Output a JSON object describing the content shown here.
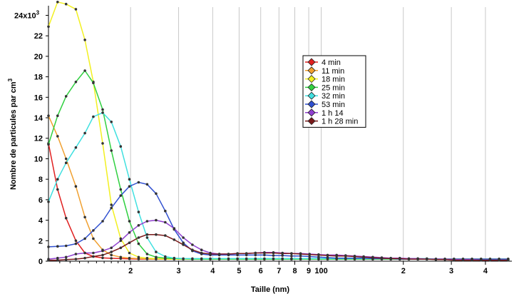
{
  "chart_data": {
    "type": "line",
    "xlabel": "Taille (nm)",
    "ylabel_text": "Nombre de particules par cm",
    "ylabel_sup": "3",
    "x_scale": "log",
    "xlim": [
      10,
      500
    ],
    "ylim": [
      0,
      24.8
    ],
    "y_exponent_label": "x10",
    "y_exponent_sup": "3",
    "y_ticks": [
      0,
      2,
      4,
      6,
      8,
      10,
      12,
      14,
      16,
      18,
      20,
      22,
      24
    ],
    "y_tick_labels": [
      "0",
      "2",
      "4",
      "6",
      "8",
      "10",
      "12",
      "14",
      "16",
      "18",
      "20",
      "22",
      "24"
    ],
    "x_gridlines": [
      20,
      30,
      40,
      50,
      60,
      70,
      80,
      90,
      100,
      200,
      300,
      400
    ],
    "x_tick_labels": [
      {
        "x": 20,
        "label": "2"
      },
      {
        "x": 30,
        "label": "3"
      },
      {
        "x": 40,
        "label": "4"
      },
      {
        "x": 50,
        "label": "5"
      },
      {
        "x": 60,
        "label": "6"
      },
      {
        "x": 70,
        "label": "7"
      },
      {
        "x": 80,
        "label": "8"
      },
      {
        "x": 90,
        "label": "9"
      },
      {
        "x": 100,
        "label": "100"
      },
      {
        "x": 200,
        "label": "2"
      },
      {
        "x": 300,
        "label": "3"
      },
      {
        "x": 400,
        "label": "4"
      }
    ],
    "grid": "vertical",
    "legend_position": "top-center",
    "x": [
      10.0,
      10.8,
      11.6,
      12.6,
      13.6,
      14.6,
      15.8,
      17.0,
      18.4,
      19.8,
      21.4,
      23.0,
      24.8,
      26.8,
      28.9,
      31.2,
      33.7,
      36.4,
      39.2,
      42.3,
      45.7,
      49.3,
      53.2,
      57.4,
      61.9,
      66.8,
      72.1,
      77.8,
      84.0,
      90.6,
      97.8,
      105.5,
      113.9,
      122.9,
      132.6,
      143.1,
      154.5,
      166.7,
      179.9,
      194.1,
      209.5,
      226.1,
      244.0,
      263.3,
      284.2,
      306.7,
      331.0,
      357.2,
      385.5,
      416.0,
      449.0,
      484.5
    ],
    "series": [
      {
        "name": "4 min",
        "color": "#e02020",
        "values": [
          11.5,
          7.0,
          4.2,
          2.0,
          0.8,
          0.45,
          0.32,
          0.28,
          0.25,
          0.22,
          0.2,
          0.2,
          0.2,
          0.2,
          0.2,
          0.2,
          0.2,
          0.2,
          0.2,
          0.2,
          0.2,
          0.2,
          0.2,
          0.2,
          0.2,
          0.2,
          0.2,
          0.2,
          0.2,
          0.2,
          0.2,
          0.2,
          0.2,
          0.2,
          0.2,
          0.2,
          0.2,
          0.2,
          0.2,
          0.2,
          0.2,
          0.2,
          0.2,
          0.2,
          0.2,
          0.2,
          0.2,
          0.2,
          0.2,
          0.2,
          0.2,
          0.2
        ]
      },
      {
        "name": "11 min",
        "color": "#f0a030",
        "values": [
          14.2,
          12.2,
          10.0,
          7.3,
          4.3,
          2.2,
          1.1,
          0.6,
          0.4,
          0.3,
          0.25,
          0.22,
          0.2,
          0.2,
          0.2,
          0.2,
          0.2,
          0.2,
          0.2,
          0.2,
          0.2,
          0.2,
          0.2,
          0.2,
          0.2,
          0.2,
          0.2,
          0.2,
          0.2,
          0.2,
          0.2,
          0.2,
          0.2,
          0.2,
          0.2,
          0.2,
          0.2,
          0.2,
          0.2,
          0.2,
          0.2,
          0.2,
          0.2,
          0.2,
          0.2,
          0.2,
          0.2,
          0.2,
          0.2,
          0.2,
          0.2,
          0.2
        ]
      },
      {
        "name": "18 min",
        "color": "#f2f020",
        "values": [
          22.9,
          25.3,
          25.1,
          24.6,
          21.6,
          17.5,
          11.5,
          5.5,
          2.2,
          0.8,
          0.4,
          0.3,
          0.25,
          0.22,
          0.2,
          0.2,
          0.2,
          0.2,
          0.2,
          0.2,
          0.2,
          0.2,
          0.2,
          0.2,
          0.2,
          0.2,
          0.2,
          0.2,
          0.2,
          0.2,
          0.2,
          0.2,
          0.2,
          0.2,
          0.2,
          0.2,
          0.2,
          0.2,
          0.2,
          0.2,
          0.2,
          0.2,
          0.2,
          0.2,
          0.2,
          0.2,
          0.2,
          0.2,
          0.2,
          0.2,
          0.2,
          0.2
        ]
      },
      {
        "name": "25 min",
        "color": "#30d040",
        "values": [
          11.4,
          14.2,
          16.1,
          17.5,
          18.6,
          17.4,
          14.8,
          10.8,
          7.0,
          3.9,
          1.7,
          0.7,
          0.4,
          0.3,
          0.25,
          0.22,
          0.2,
          0.2,
          0.2,
          0.2,
          0.2,
          0.2,
          0.2,
          0.2,
          0.2,
          0.2,
          0.2,
          0.2,
          0.2,
          0.2,
          0.2,
          0.2,
          0.2,
          0.2,
          0.2,
          0.2,
          0.2,
          0.2,
          0.2,
          0.2,
          0.2,
          0.2,
          0.2,
          0.2,
          0.2,
          0.2,
          0.2,
          0.2,
          0.2,
          0.2,
          0.2,
          0.2
        ]
      },
      {
        "name": "32 min",
        "color": "#40e0e0",
        "values": [
          5.8,
          8.0,
          9.6,
          11.1,
          12.5,
          14.1,
          14.5,
          13.6,
          11.2,
          8.0,
          4.8,
          2.3,
          0.9,
          0.45,
          0.3,
          0.25,
          0.25,
          0.25,
          0.25,
          0.25,
          0.25,
          0.25,
          0.25,
          0.25,
          0.25,
          0.25,
          0.25,
          0.25,
          0.25,
          0.25,
          0.25,
          0.25,
          0.25,
          0.25,
          0.25,
          0.25,
          0.25,
          0.25,
          0.25,
          0.25,
          0.25,
          0.25,
          0.25,
          0.2,
          0.2,
          0.2,
          0.2,
          0.2,
          0.2,
          0.2,
          0.2,
          0.2
        ]
      },
      {
        "name": "53 min",
        "color": "#3050d0",
        "values": [
          1.4,
          1.45,
          1.5,
          1.7,
          2.2,
          3.0,
          3.9,
          5.2,
          6.4,
          7.3,
          7.7,
          7.5,
          6.6,
          4.9,
          3.1,
          1.8,
          1.0,
          0.7,
          0.6,
          0.6,
          0.6,
          0.6,
          0.6,
          0.6,
          0.6,
          0.55,
          0.55,
          0.5,
          0.5,
          0.45,
          0.4,
          0.35,
          0.3,
          0.3,
          0.3,
          0.3,
          0.25,
          0.25,
          0.25,
          0.2,
          0.2,
          0.2,
          0.2,
          0.2,
          0.2,
          0.2,
          0.2,
          0.2,
          0.2,
          0.2,
          0.2,
          0.2
        ]
      },
      {
        "name": "1 h 14",
        "color": "#9040d0",
        "values": [
          0.2,
          0.3,
          0.4,
          0.7,
          0.8,
          0.8,
          1.0,
          1.3,
          2.0,
          2.8,
          3.5,
          3.9,
          4.0,
          3.8,
          3.2,
          2.3,
          1.6,
          1.1,
          0.8,
          0.7,
          0.7,
          0.75,
          0.75,
          0.8,
          0.85,
          0.85,
          0.8,
          0.75,
          0.75,
          0.7,
          0.65,
          0.6,
          0.6,
          0.55,
          0.5,
          0.45,
          0.4,
          0.35,
          0.3,
          0.3,
          0.25,
          0.25,
          0.2,
          0.2,
          0.2,
          0.15,
          0.15,
          0.15,
          0.1,
          0.1,
          0.1,
          0.1
        ]
      },
      {
        "name": "1 h 28 min",
        "color": "#7a1a1a",
        "values": [
          0.1,
          0.1,
          0.15,
          0.2,
          0.3,
          0.45,
          0.6,
          0.9,
          1.3,
          1.8,
          2.3,
          2.6,
          2.6,
          2.5,
          2.1,
          1.6,
          1.1,
          0.8,
          0.7,
          0.7,
          0.7,
          0.75,
          0.75,
          0.8,
          0.8,
          0.8,
          0.75,
          0.75,
          0.7,
          0.65,
          0.6,
          0.55,
          0.5,
          0.5,
          0.45,
          0.4,
          0.35,
          0.3,
          0.25,
          0.25,
          0.2,
          0.2,
          0.2,
          0.15,
          0.15,
          0.1,
          0.1,
          0.1,
          0.1,
          0.1,
          0.1,
          0.1
        ]
      }
    ]
  }
}
